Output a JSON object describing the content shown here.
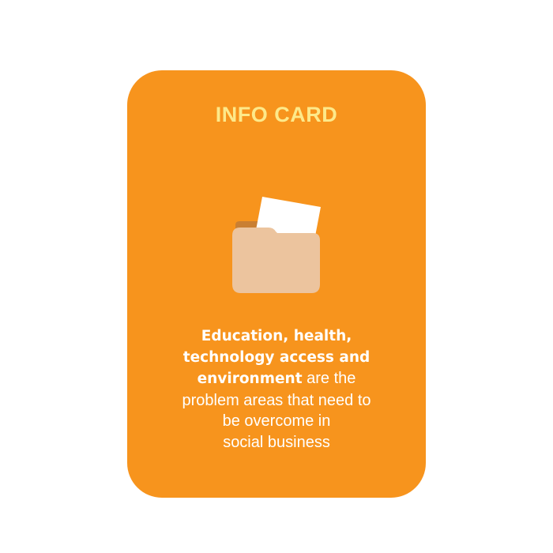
{
  "card": {
    "title": "INFO CARD",
    "icon": "folder-with-paper-icon",
    "colors": {
      "card_background": "#f7941d",
      "title": "#fde98a",
      "folder_body": "#ecc49e",
      "folder_tab": "#c97f33",
      "paper": "#ffffff",
      "text": "#ffffff"
    },
    "body": {
      "line1_bold": "Education, health,",
      "line2_bold": "technology access and",
      "line3_bold": "environment",
      "line3_rest": " are the",
      "line4": "problem areas that need to",
      "line5": "be overcome in",
      "line6": "social business"
    }
  }
}
